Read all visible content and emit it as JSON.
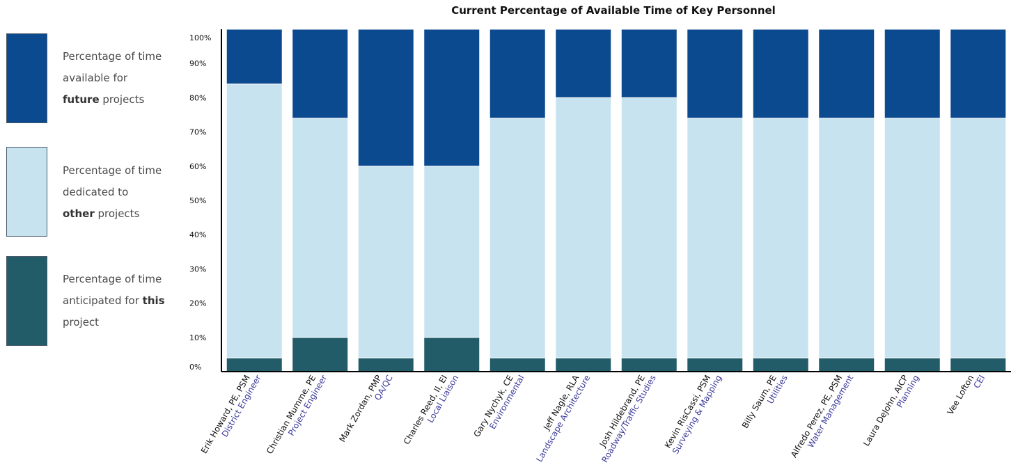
{
  "colors": {
    "future": "#0c4a8f",
    "other": "#c8e3f0",
    "this": "#225c68",
    "axis": "#000000"
  },
  "legend": [
    {
      "key": "future",
      "line1": "Percentage of time",
      "line2": "available for",
      "bold": "future",
      "line3_rest": " projects"
    },
    {
      "key": "other",
      "line1": "Percentage of time",
      "line2": "dedicated to",
      "bold": "other",
      "line3_rest": " projects"
    },
    {
      "key": "this",
      "line1": "Percentage of time",
      "line2_pre": "anticipated for ",
      "bold": "this",
      "line3": "project"
    }
  ],
  "chart_data": {
    "type": "bar",
    "title": "Current Percentage of Available Time of Key Personnel",
    "stacked": true,
    "ylim": [
      0,
      100
    ],
    "yticks": [
      "0%",
      "10%",
      "20%",
      "30%",
      "40%",
      "50%",
      "60%",
      "70%",
      "80%",
      "90%",
      "100%"
    ],
    "categories": [
      {
        "name": "Erik Howard, PE, PSM",
        "role": "District Engineer"
      },
      {
        "name": "Christian Mumme, PE",
        "role": "Project Engineer"
      },
      {
        "name": "Mark Zordan, PMP",
        "role": "QA/QC"
      },
      {
        "name": "Charles Reed, II, EI",
        "role": "Local Liaison"
      },
      {
        "name": "Gary Nychyk, CE",
        "role": "Environmental"
      },
      {
        "name": "Jeff Nagle, RLA",
        "role": "Landscape Architecture"
      },
      {
        "name": "Josh Hildebrand, PE",
        "role": "Roadway/Traffic Studies"
      },
      {
        "name": "Kevin RisCassi, PSM",
        "role": "Surveying & Mapping"
      },
      {
        "name": "Billy Saum, PE",
        "role": "Utilities"
      },
      {
        "name": "Alfredo Perez, PE, PSM",
        "role": "Water Management"
      },
      {
        "name": "Laura DeJohn, AICP",
        "role": "Planning"
      },
      {
        "name": "Vee Lofton",
        "role": "CEI"
      }
    ],
    "series": [
      {
        "key": "this",
        "values": [
          4,
          10,
          4,
          10,
          4,
          4,
          4,
          4,
          4,
          4,
          4,
          4
        ]
      },
      {
        "key": "other",
        "values": [
          80,
          64,
          56,
          50,
          70,
          76,
          76,
          70,
          70,
          70,
          70,
          70
        ]
      },
      {
        "key": "future",
        "values": [
          16,
          26,
          40,
          40,
          26,
          20,
          20,
          26,
          26,
          26,
          26,
          26
        ]
      }
    ]
  }
}
